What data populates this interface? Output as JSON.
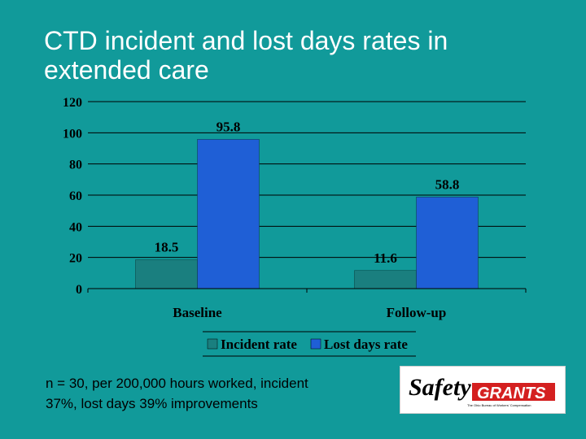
{
  "slide": {
    "title_line1": "CTD incident and lost days rates in",
    "title_line2": "extended care",
    "note_line1": "n = 30, per 200,000 hours worked, incident",
    "note_line2": "37%, lost days 39% improvements"
  },
  "logo": {
    "text_safety": "Safety",
    "text_grants": "GRANTS",
    "tagline": "The Ohio Bureau of Workers' Compensation"
  },
  "colors": {
    "background": "#119a9a",
    "incident": "#1a7f7f",
    "lost_days": "#1f5fd6",
    "plot": "#119a9a",
    "logo_red": "#d42020"
  },
  "chart_data": {
    "type": "bar",
    "categories": [
      "Baseline",
      "Follow-up"
    ],
    "series": [
      {
        "name": "Incident rate",
        "values": [
          18.5,
          11.6
        ]
      },
      {
        "name": "Lost days rate",
        "values": [
          95.8,
          58.8
        ]
      }
    ],
    "data_labels": [
      [
        "18.5",
        "11.6"
      ],
      [
        "95.8",
        "58.8"
      ]
    ],
    "ylim": [
      0,
      120
    ],
    "yticks": [
      0,
      20,
      40,
      60,
      80,
      100,
      120
    ],
    "grid": true,
    "legend_position": "bottom"
  }
}
